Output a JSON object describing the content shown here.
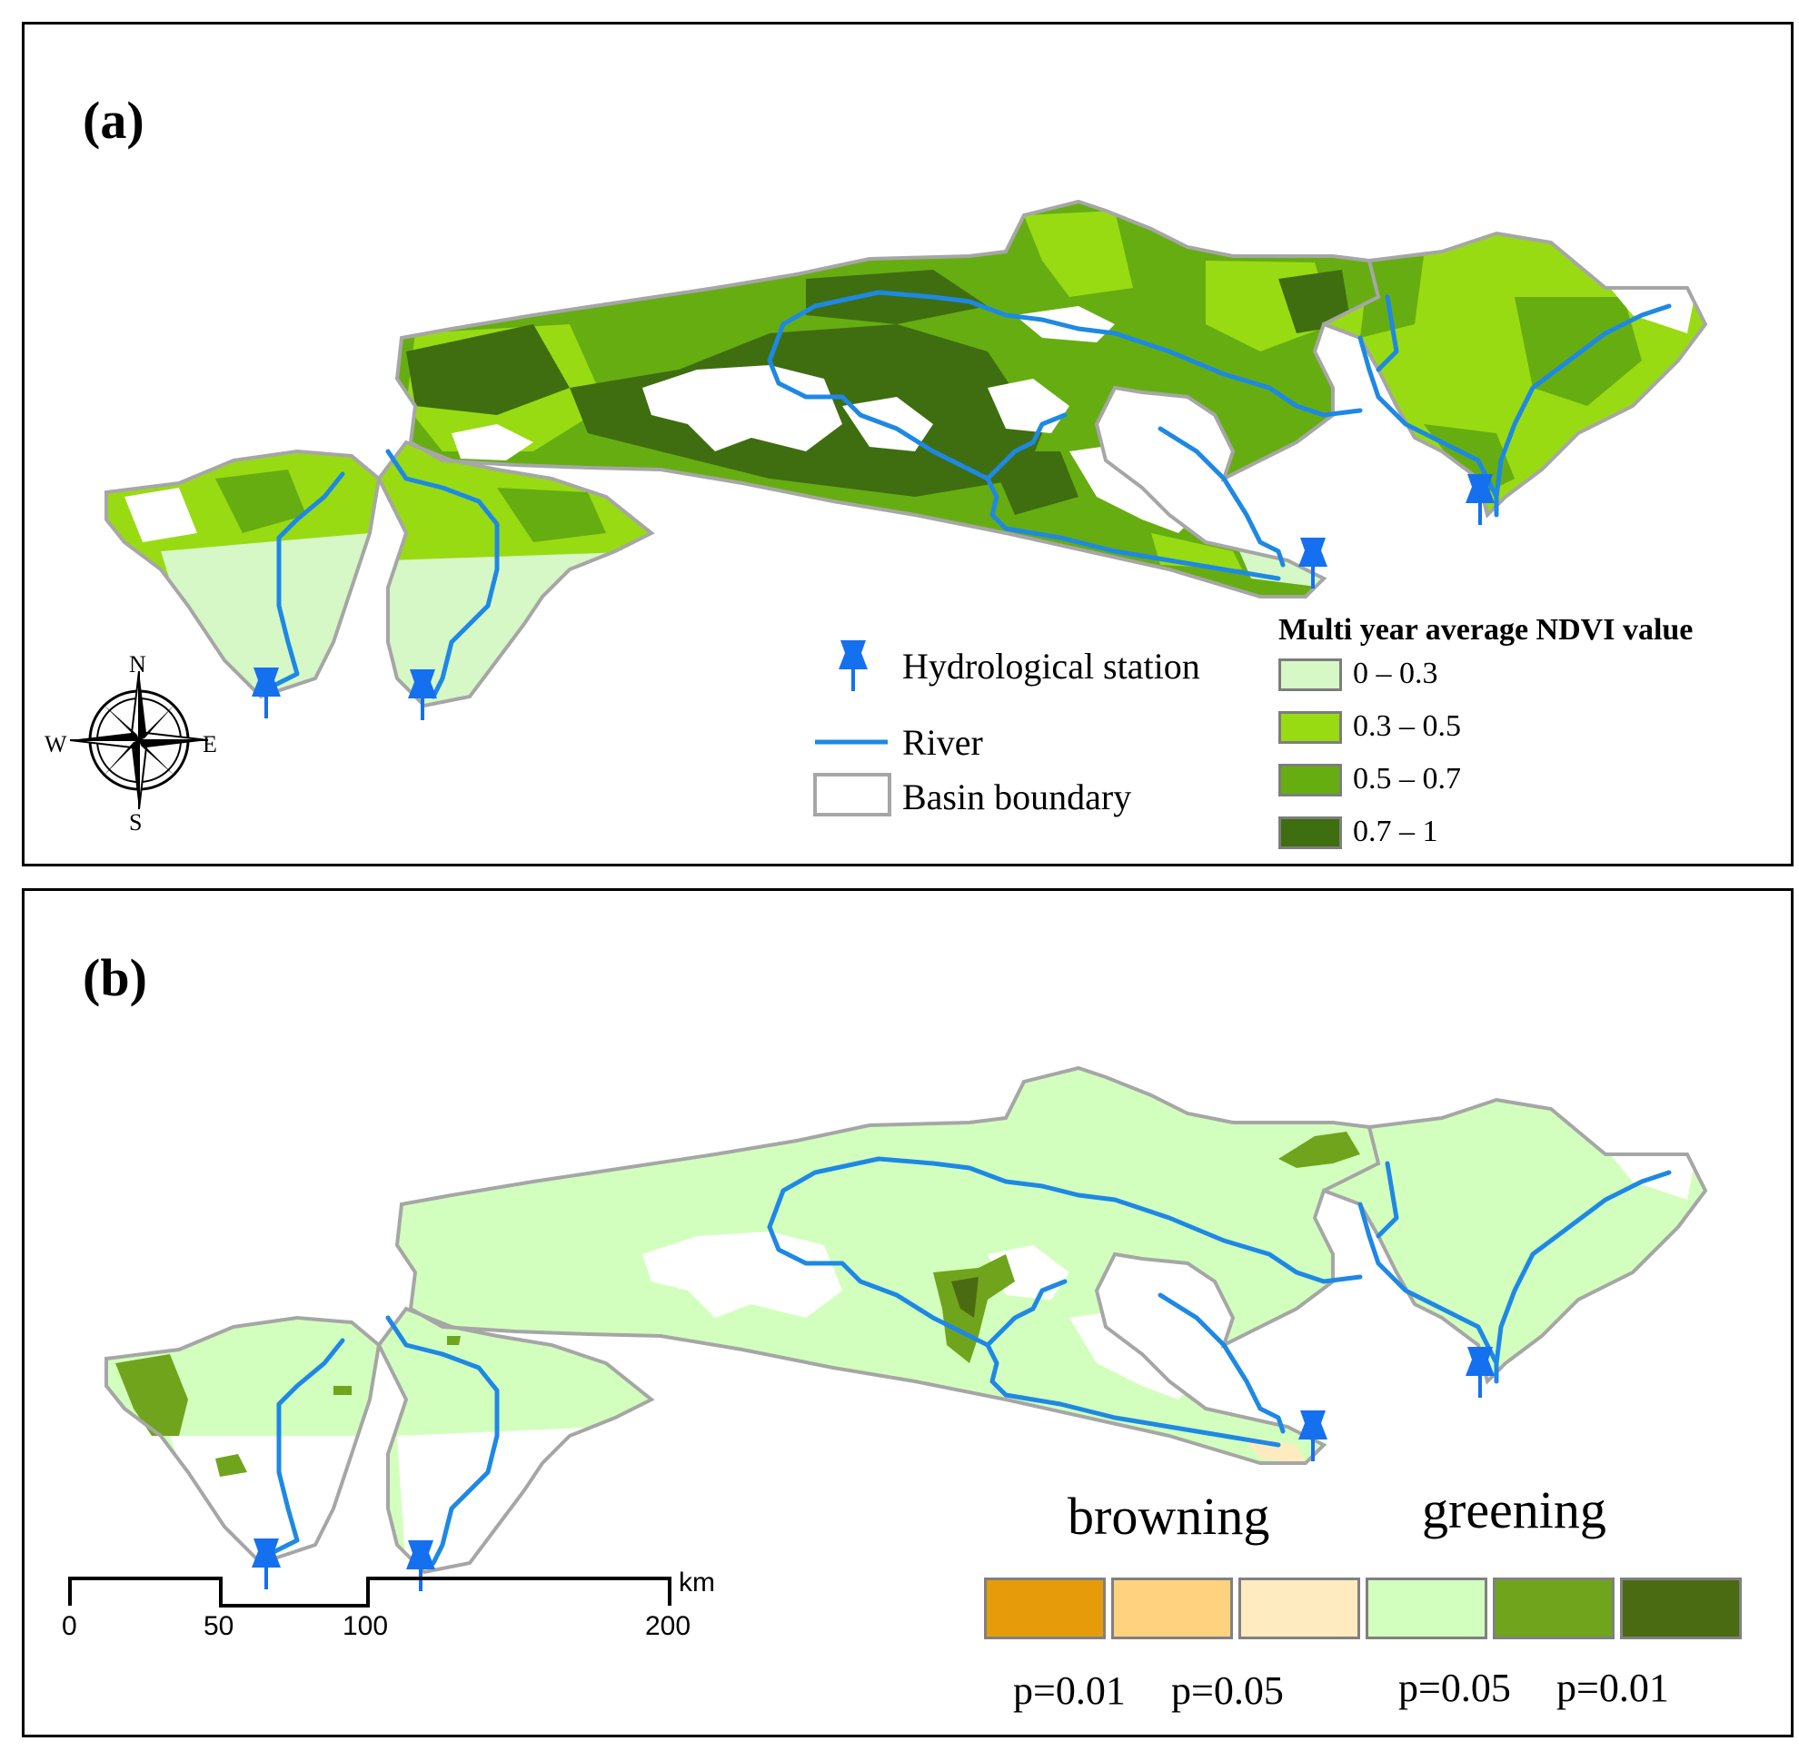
{
  "panel_a": {
    "label": "(a)",
    "legend_title": "Multi year average NDVI value",
    "classes": [
      {
        "label": "0 – 0.3",
        "color": "#d6f7c6"
      },
      {
        "label": "0.3 – 0.5",
        "color": "#98db12"
      },
      {
        "label": "0.5 – 0.7",
        "color": "#66ad12"
      },
      {
        "label": "0.7 – 1",
        "color": "#3e6e10"
      }
    ],
    "symbols": {
      "station": "Hydrological station",
      "river": "River",
      "boundary": "Basin boundary"
    },
    "compass": {
      "n": "N",
      "s": "S",
      "w": "W",
      "e": "E"
    }
  },
  "panel_b": {
    "label": "(b)",
    "browning_label": "browning",
    "greening_label": "greening",
    "classes": [
      {
        "color": "#e69c0a"
      },
      {
        "color": "#ffd27f"
      },
      {
        "color": "#ffebbf"
      },
      {
        "color": "#d3ffbe"
      },
      {
        "color": "#70a41c"
      },
      {
        "color": "#4b6b12"
      }
    ],
    "p_labels": [
      "p=0.01",
      "p=0.05",
      "p=0.05",
      "p=0.01"
    ],
    "scale": {
      "ticks": [
        "0",
        "50",
        "100",
        "200"
      ],
      "unit": "km"
    }
  },
  "colors": {
    "river": "#1e88e5",
    "station": "#1570ef",
    "boundary": "#a6a6a6",
    "snow": "#ffffff"
  }
}
